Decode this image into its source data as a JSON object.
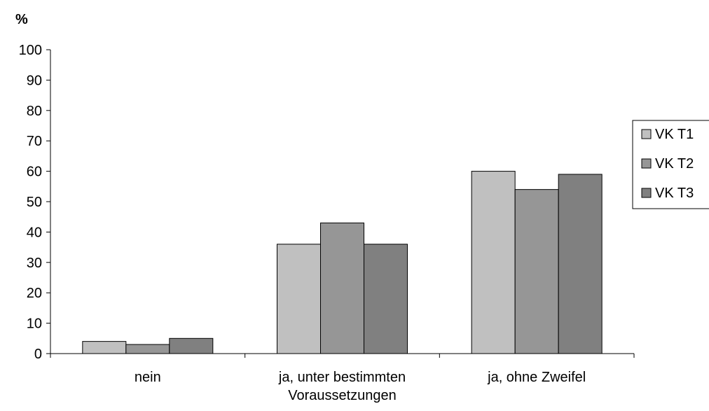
{
  "chart_data": {
    "type": "bar",
    "ylabel": "%",
    "ylim": [
      0,
      100
    ],
    "yticks": [
      0,
      10,
      20,
      30,
      40,
      50,
      60,
      70,
      80,
      90,
      100
    ],
    "categories": [
      "nein",
      "ja, unter bestimmten Voraussetzungen",
      "ja, ohne Zweifel"
    ],
    "category_lines": [
      [
        "nein"
      ],
      [
        "ja, unter bestimmten",
        "Voraussetzungen"
      ],
      [
        "ja, ohne Zweifel"
      ]
    ],
    "series": [
      {
        "name": "VK T1",
        "values": [
          4,
          36,
          60
        ],
        "color": "#c0c0c0"
      },
      {
        "name": "VK T2",
        "values": [
          3,
          43,
          54
        ],
        "color": "#969696"
      },
      {
        "name": "VK T3",
        "values": [
          5,
          36,
          59
        ],
        "color": "#808080"
      }
    ],
    "legend_position": "right",
    "grid": false
  }
}
